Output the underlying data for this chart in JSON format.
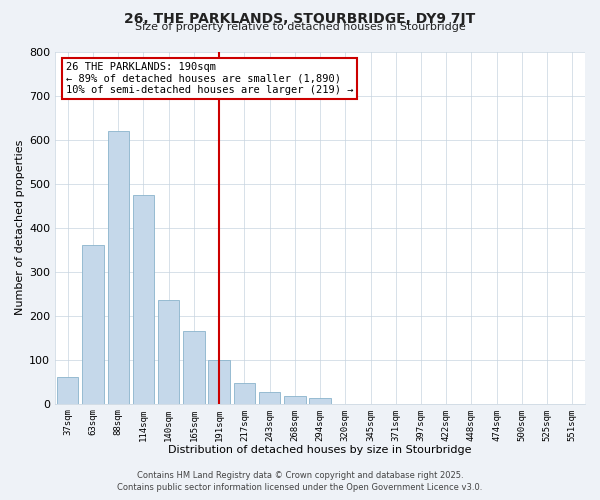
{
  "title": "26, THE PARKLANDS, STOURBRIDGE, DY9 7JT",
  "subtitle": "Size of property relative to detached houses in Stourbridge",
  "xlabel": "Distribution of detached houses by size in Stourbridge",
  "ylabel": "Number of detached properties",
  "bar_labels": [
    "37sqm",
    "63sqm",
    "88sqm",
    "114sqm",
    "140sqm",
    "165sqm",
    "191sqm",
    "217sqm",
    "243sqm",
    "268sqm",
    "294sqm",
    "320sqm",
    "345sqm",
    "371sqm",
    "397sqm",
    "422sqm",
    "448sqm",
    "474sqm",
    "500sqm",
    "525sqm",
    "551sqm"
  ],
  "bar_values": [
    60,
    360,
    620,
    475,
    235,
    165,
    100,
    48,
    26,
    18,
    14,
    0,
    0,
    0,
    0,
    0,
    0,
    0,
    0,
    0,
    0
  ],
  "bar_color": "#c5d8ea",
  "bar_edge_color": "#8ab4cc",
  "vline_x_index": 6,
  "vline_color": "#cc0000",
  "annotation_title": "26 THE PARKLANDS: 190sqm",
  "annotation_line1": "← 89% of detached houses are smaller (1,890)",
  "annotation_line2": "10% of semi-detached houses are larger (219) →",
  "annotation_box_color": "#cc0000",
  "ylim": [
    0,
    800
  ],
  "yticks": [
    0,
    100,
    200,
    300,
    400,
    500,
    600,
    700,
    800
  ],
  "footnote1": "Contains HM Land Registry data © Crown copyright and database right 2025.",
  "footnote2": "Contains public sector information licensed under the Open Government Licence v3.0.",
  "background_color": "#eef2f7",
  "plot_bg_color": "#ffffff",
  "grid_color": "#c8d4e0"
}
